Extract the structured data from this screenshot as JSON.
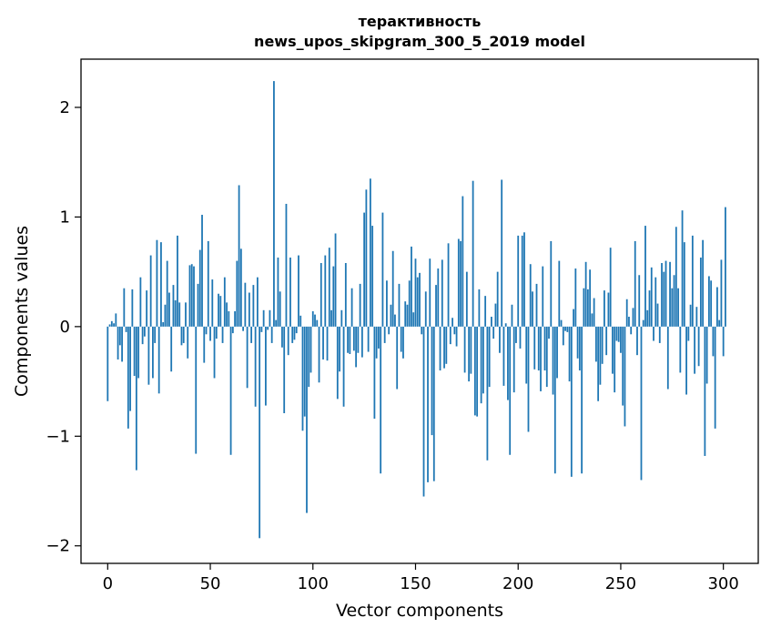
{
  "chart_data": {
    "type": "bar",
    "title_line1": "терактивность",
    "title_line2": "news_upos_skipgram_300_5_2019 model",
    "xlabel": "Vector components",
    "ylabel": "Components values",
    "xlim": [
      -13,
      317
    ],
    "ylim": [
      -2.16,
      2.44
    ],
    "xticks": [
      0,
      50,
      100,
      150,
      200,
      250,
      300
    ],
    "yticks": [
      -2,
      -1,
      0,
      1,
      2
    ],
    "ytick_labels": [
      "−2",
      "−1",
      "0",
      "1",
      "2"
    ],
    "bar_color": "#1f77b4",
    "values": [
      -0.68,
      0.02,
      0.05,
      0.03,
      0.12,
      -0.3,
      -0.17,
      -0.32,
      0.35,
      -0.05,
      -0.93,
      -0.77,
      0.34,
      -0.45,
      -1.31,
      -0.47,
      0.45,
      -0.16,
      -0.09,
      0.33,
      -0.53,
      0.65,
      -0.47,
      -0.15,
      0.79,
      -0.61,
      0.77,
      0.04,
      0.2,
      0.6,
      0.31,
      -0.41,
      0.38,
      0.24,
      0.83,
      0.22,
      -0.17,
      -0.15,
      0.22,
      -0.29,
      0.56,
      0.57,
      0.55,
      -1.16,
      0.39,
      0.7,
      1.02,
      -0.33,
      -0.07,
      0.78,
      -0.13,
      0.43,
      -0.47,
      -0.11,
      0.3,
      0.28,
      -0.15,
      0.45,
      0.22,
      0.14,
      -1.17,
      -0.06,
      0.14,
      0.6,
      1.29,
      0.71,
      -0.04,
      0.4,
      -0.56,
      0.31,
      -0.15,
      0.38,
      -0.73,
      0.45,
      -1.93,
      -0.05,
      0.15,
      -0.72,
      -0.03,
      0.15,
      -0.15,
      2.24,
      0.06,
      0.63,
      0.32,
      -0.19,
      -0.79,
      1.12,
      -0.26,
      0.63,
      -0.15,
      -0.12,
      -0.06,
      0.65,
      0.1,
      -0.95,
      -0.82,
      -1.7,
      -0.55,
      -0.42,
      0.14,
      0.11,
      0.06,
      -0.51,
      0.58,
      -0.3,
      0.65,
      -0.31,
      0.72,
      0.15,
      0.55,
      0.85,
      -0.66,
      -0.41,
      0.15,
      -0.73,
      0.58,
      -0.24,
      -0.25,
      0.35,
      -0.22,
      -0.37,
      -0.24,
      0.39,
      -0.28,
      1.04,
      1.25,
      -0.23,
      1.35,
      0.92,
      -0.84,
      -0.29,
      -0.2,
      -1.34,
      1.04,
      -0.15,
      0.42,
      -0.07,
      0.2,
      0.69,
      0.11,
      -0.57,
      0.39,
      -0.23,
      -0.29,
      0.23,
      0.2,
      0.42,
      0.73,
      0.13,
      0.62,
      0.45,
      0.49,
      -0.07,
      -1.55,
      0.32,
      -1.42,
      0.62,
      -0.99,
      -1.41,
      0.38,
      0.53,
      -0.4,
      0.61,
      -0.38,
      -0.34,
      0.76,
      -0.16,
      0.08,
      -0.07,
      -0.18,
      0.8,
      0.78,
      1.19,
      -0.42,
      0.5,
      -0.5,
      -0.43,
      1.33,
      -0.81,
      -0.82,
      0.34,
      -0.7,
      -0.61,
      0.28,
      -1.22,
      -0.55,
      0.09,
      -0.11,
      0.21,
      0.5,
      -0.24,
      1.34,
      -0.54,
      0.03,
      -0.67,
      -1.17,
      0.2,
      -0.6,
      -0.15,
      0.83,
      -0.2,
      0.83,
      0.86,
      -0.52,
      -0.96,
      0.57,
      0.32,
      -0.39,
      0.39,
      -0.4,
      -0.59,
      0.55,
      -0.4,
      -0.55,
      -0.11,
      0.78,
      -0.62,
      -1.34,
      -0.47,
      0.6,
      0.06,
      -0.17,
      -0.04,
      -0.05,
      -0.5,
      -1.37,
      0.16,
      0.53,
      -0.29,
      -0.4,
      -1.34,
      0.35,
      0.59,
      0.34,
      0.52,
      0.12,
      0.26,
      -0.32,
      -0.68,
      -0.53,
      -0.34,
      0.33,
      -0.26,
      0.31,
      0.72,
      -0.43,
      -0.6,
      -0.13,
      -0.14,
      -0.24,
      -0.72,
      -0.91,
      0.25,
      0.09,
      -0.07,
      0.17,
      0.78,
      -0.26,
      0.47,
      -1.4,
      0.06,
      0.92,
      0.15,
      0.33,
      0.54,
      -0.13,
      0.45,
      0.21,
      -0.15,
      0.58,
      0.5,
      0.6,
      -0.57,
      0.59,
      0.35,
      0.47,
      0.91,
      0.35,
      -0.42,
      1.06,
      0.77,
      -0.62,
      -0.13,
      0.2,
      0.83,
      -0.43,
      0.18,
      -0.36,
      0.63,
      0.79,
      -1.18,
      -0.52,
      0.46,
      0.42,
      -0.27,
      -0.93,
      0.36,
      0.06,
      0.61,
      -0.27,
      1.09
    ]
  }
}
